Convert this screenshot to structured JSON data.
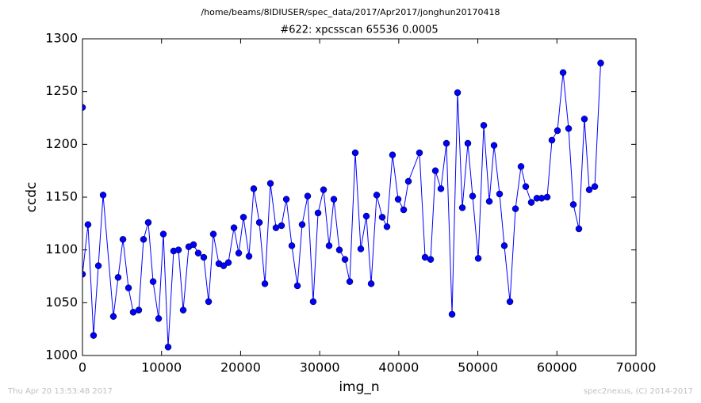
{
  "chart_data": {
    "type": "line",
    "suptitle": "/home/beams/8IDIUSER/spec_data/2017/Apr2017/jonghun20170418",
    "title": "#622: xpcsscan 65536 0.0005",
    "xlabel": "img_n",
    "ylabel": "ccdc",
    "color": "#0000ff",
    "marker": "circle",
    "x": [
      0,
      0,
      700,
      1400,
      2010,
      2610,
      3910,
      4510,
      5120,
      5820,
      6420,
      7120,
      7720,
      8320,
      8930,
      9630,
      10230,
      10830,
      11530,
      12140,
      12740,
      13440,
      14040,
      14640,
      15340,
      15950,
      16550,
      17250,
      17850,
      18450,
      19160,
      19760,
      20360,
      21060,
      21660,
      22370,
      23070,
      23770,
      24470,
      25170,
      25780,
      26480,
      27180,
      27780,
      28480,
      29180,
      29790,
      30490,
      31190,
      31790,
      32490,
      33200,
      33800,
      34500,
      35200,
      35900,
      36510,
      37210,
      37910,
      38510,
      39210,
      39920,
      40620,
      41220,
      42620,
      43330,
      44030,
      44630,
      45330,
      46030,
      46740,
      47440,
      48040,
      48740,
      49340,
      50050,
      50750,
      51450,
      52050,
      52750,
      53350,
      54060,
      54760,
      55460,
      56060,
      56760,
      57470,
      58070,
      58770,
      59370,
      60070,
      60780,
      61480,
      62080,
      62780,
      63480,
      64090,
      64790,
      65536
    ],
    "values": [
      1235,
      1077,
      1124,
      1019,
      1085,
      1152,
      1037,
      1074,
      1110,
      1064,
      1041,
      1043,
      1110,
      1126,
      1070,
      1035,
      1115,
      1008,
      1099,
      1100,
      1043,
      1103,
      1105,
      1097,
      1093,
      1051,
      1115,
      1087,
      1085,
      1088,
      1121,
      1097,
      1131,
      1094,
      1158,
      1126,
      1068,
      1163,
      1121,
      1123,
      1148,
      1104,
      1066,
      1124,
      1151,
      1051,
      1135,
      1157,
      1104,
      1148,
      1100,
      1091,
      1070,
      1192,
      1101,
      1132,
      1068,
      1152,
      1131,
      1122,
      1190,
      1148,
      1138,
      1165,
      1192,
      1093,
      1091,
      1175,
      1158,
      1201,
      1039,
      1249,
      1140,
      1201,
      1151,
      1092,
      1218,
      1146,
      1199,
      1153,
      1104,
      1051,
      1139,
      1179,
      1160,
      1145,
      1149,
      1149,
      1150,
      1204,
      1213,
      1268,
      1215,
      1143,
      1120,
      1224,
      1157,
      1160,
      1277
    ],
    "xlim": [
      0,
      70000
    ],
    "ylim": [
      1000,
      1300
    ],
    "xticks": [
      0,
      10000,
      20000,
      30000,
      40000,
      50000,
      60000,
      70000
    ],
    "yticks": [
      1000,
      1050,
      1100,
      1150,
      1200,
      1250,
      1300
    ]
  },
  "footer": {
    "left": "Thu Apr 20 13:53:48 2017",
    "right": "spec2nexus, (C) 2014-2017"
  }
}
